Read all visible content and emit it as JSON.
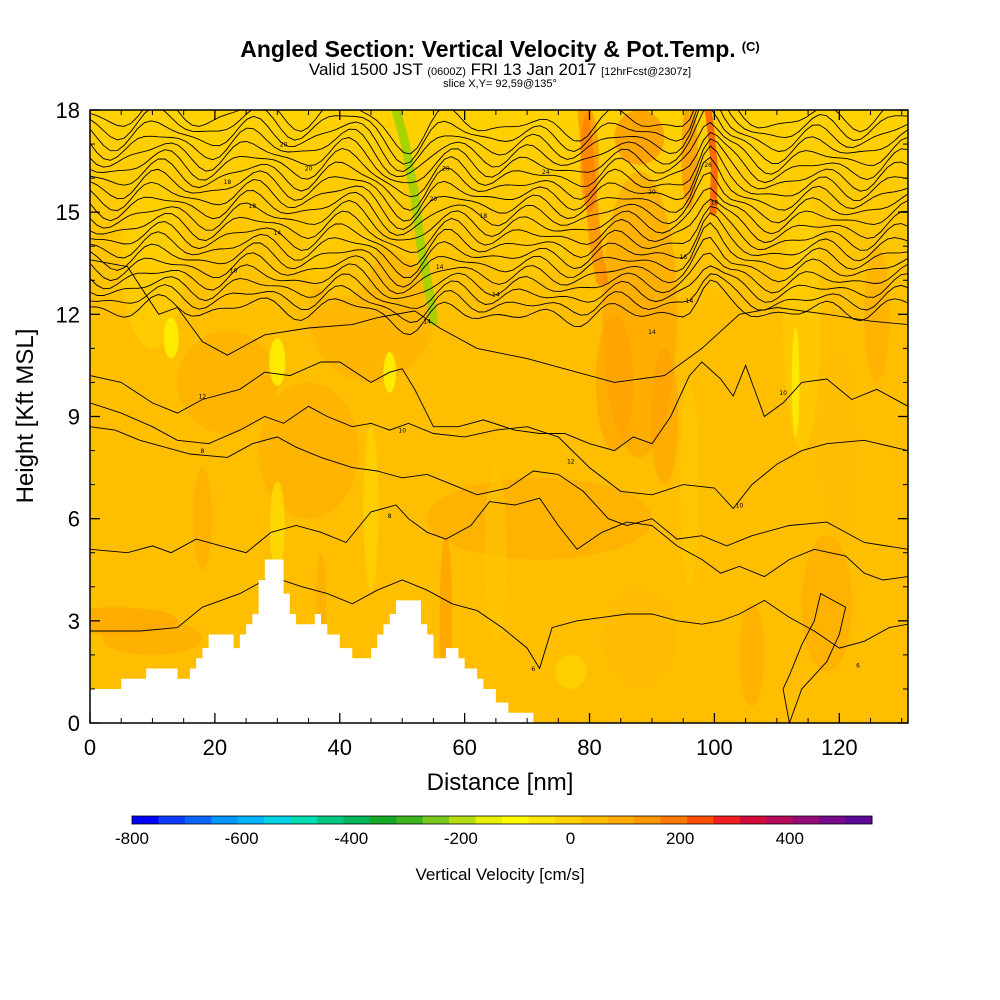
{
  "title": {
    "main": "Angled Section: Vertical Velocity & Pot.Temp.",
    "unit_tag": "(C)",
    "valid_prefix": "Valid 1500 JST",
    "valid_z": "(0600Z)",
    "valid_date": "FRI 13 Jan 2017",
    "valid_fcst": "[12hrFcst@2307z]",
    "slice": "slice X,Y= 92,59@135°"
  },
  "chart_data": {
    "type": "heatmap",
    "title": "Angled Section: Vertical Velocity & Pot.Temp. (C)",
    "xlabel": "Distance [nm]",
    "ylabel": "Height [Kft MSL]",
    "xlim": [
      0,
      131
    ],
    "ylim": [
      0,
      18
    ],
    "x_ticks": [
      0,
      20,
      40,
      60,
      80,
      100,
      120
    ],
    "y_ticks": [
      0,
      3,
      6,
      9,
      12,
      15,
      18
    ],
    "colorbar": {
      "label": "Vertical Velocity [cm/s]",
      "ticks": [
        -800,
        -600,
        -400,
        -200,
        0,
        200,
        400
      ],
      "min": -800,
      "max": 550,
      "colors": [
        "#0000ff",
        "#0a3cff",
        "#0a64ff",
        "#0096ff",
        "#00b4ff",
        "#00d2e6",
        "#00dcb4",
        "#00c882",
        "#00b45a",
        "#14aa28",
        "#3cb41e",
        "#78c81e",
        "#b4dc14",
        "#e6f000",
        "#ffff00",
        "#ffe600",
        "#ffd200",
        "#ffbe00",
        "#ffaa00",
        "#ff9600",
        "#ff7800",
        "#ff5000",
        "#f01e1e",
        "#d20a3c",
        "#b40a5a",
        "#960a78",
        "#780a8c",
        "#5a0a96"
      ]
    },
    "terrain_kft": [
      [
        0,
        1.0
      ],
      [
        4,
        1.0
      ],
      [
        5,
        1.3
      ],
      [
        8,
        1.3
      ],
      [
        9,
        1.6
      ],
      [
        13,
        1.6
      ],
      [
        14,
        1.3
      ],
      [
        15,
        1.3
      ],
      [
        16,
        1.6
      ],
      [
        17,
        1.9
      ],
      [
        18,
        2.2
      ],
      [
        19,
        2.6
      ],
      [
        22,
        2.6
      ],
      [
        23,
        2.2
      ],
      [
        24,
        2.6
      ],
      [
        25,
        2.9
      ],
      [
        26,
        3.2
      ],
      [
        27,
        4.2
      ],
      [
        28,
        4.8
      ],
      [
        30,
        4.8
      ],
      [
        31,
        3.8
      ],
      [
        32,
        3.2
      ],
      [
        33,
        2.9
      ],
      [
        35,
        2.9
      ],
      [
        36,
        3.2
      ],
      [
        37,
        2.9
      ],
      [
        38,
        2.6
      ],
      [
        39,
        2.6
      ],
      [
        40,
        2.2
      ],
      [
        41,
        2.2
      ],
      [
        42,
        1.9
      ],
      [
        44,
        1.9
      ],
      [
        45,
        2.2
      ],
      [
        46,
        2.6
      ],
      [
        47,
        2.9
      ],
      [
        48,
        3.2
      ],
      [
        49,
        3.6
      ],
      [
        52,
        3.6
      ],
      [
        53,
        2.9
      ],
      [
        54,
        2.6
      ],
      [
        55,
        1.9
      ],
      [
        56,
        1.9
      ],
      [
        57,
        2.2
      ],
      [
        58,
        2.2
      ],
      [
        59,
        1.9
      ],
      [
        60,
        1.6
      ],
      [
        61,
        1.6
      ],
      [
        62,
        1.3
      ],
      [
        63,
        1.0
      ],
      [
        64,
        1.0
      ],
      [
        65,
        0.6
      ],
      [
        66,
        0.6
      ],
      [
        67,
        0.3
      ],
      [
        70,
        0.3
      ],
      [
        71,
        0.0
      ],
      [
        131,
        0.0
      ]
    ],
    "theta_contour_labels": [
      {
        "x": 31,
        "y": 17.0,
        "label": "20"
      },
      {
        "x": 35,
        "y": 16.3,
        "label": "20"
      },
      {
        "x": 22,
        "y": 15.9,
        "label": "18"
      },
      {
        "x": 26,
        "y": 15.2,
        "label": "18"
      },
      {
        "x": 30,
        "y": 14.4,
        "label": "14"
      },
      {
        "x": 23,
        "y": 13.3,
        "label": "16"
      },
      {
        "x": 57,
        "y": 16.3,
        "label": "20"
      },
      {
        "x": 55,
        "y": 15.4,
        "label": "20"
      },
      {
        "x": 63,
        "y": 14.9,
        "label": "18"
      },
      {
        "x": 56,
        "y": 13.4,
        "label": "14"
      },
      {
        "x": 65,
        "y": 12.6,
        "label": "14"
      },
      {
        "x": 54,
        "y": 11.8,
        "label": "14"
      },
      {
        "x": 73,
        "y": 16.2,
        "label": "24"
      },
      {
        "x": 99,
        "y": 16.4,
        "label": "26"
      },
      {
        "x": 90,
        "y": 15.6,
        "label": "20"
      },
      {
        "x": 100,
        "y": 15.3,
        "label": "18"
      },
      {
        "x": 95,
        "y": 13.7,
        "label": "16"
      },
      {
        "x": 96,
        "y": 12.4,
        "label": "14"
      },
      {
        "x": 90,
        "y": 11.5,
        "label": "14"
      },
      {
        "x": 18,
        "y": 9.6,
        "label": "12"
      },
      {
        "x": 18,
        "y": 8.0,
        "label": "8"
      },
      {
        "x": 50,
        "y": 8.6,
        "label": "10"
      },
      {
        "x": 48,
        "y": 6.1,
        "label": "8"
      },
      {
        "x": 77,
        "y": 7.7,
        "label": "12"
      },
      {
        "x": 111,
        "y": 9.7,
        "label": "10"
      },
      {
        "x": 104,
        "y": 6.4,
        "label": "10"
      },
      {
        "x": 71,
        "y": 1.6,
        "label": "6"
      },
      {
        "x": 123,
        "y": 1.7,
        "label": "6"
      }
    ]
  }
}
